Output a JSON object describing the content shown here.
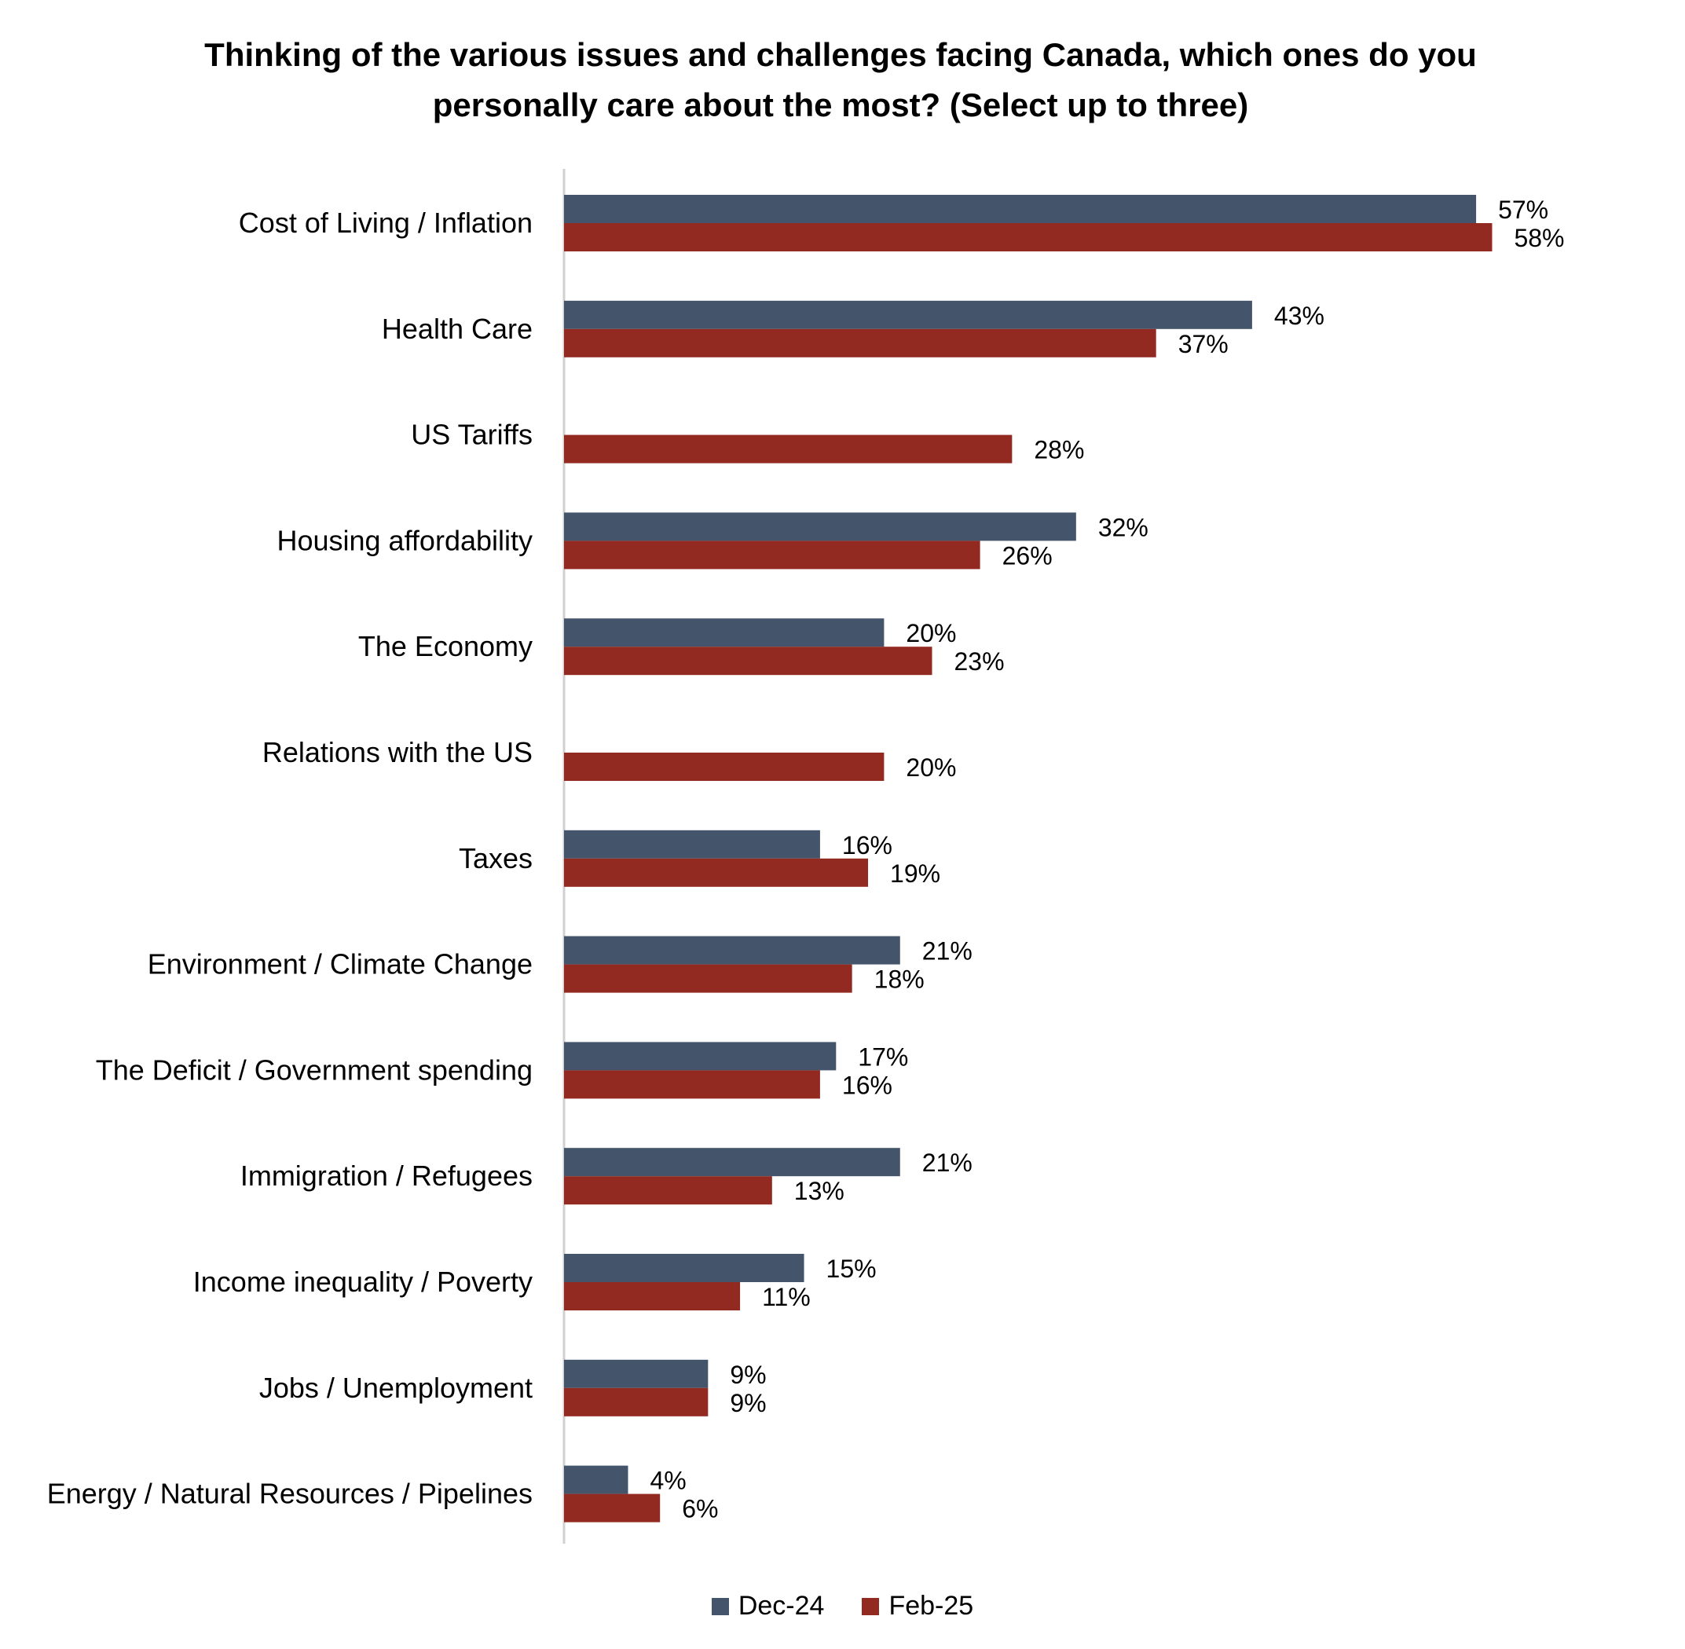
{
  "chart_data": {
    "type": "bar",
    "orientation": "horizontal",
    "title": "Thinking of the various issues and challenges facing Canada, which ones do you personally care about the most? (Select up to three)",
    "title_lines": [
      "Thinking of the various issues and challenges facing Canada, which ones do you",
      "personally care about the most? (Select up to three)"
    ],
    "categories": [
      "Cost of Living / Inflation",
      "Health Care",
      "US Tariffs",
      "Housing affordability",
      "The Economy",
      "Relations with the US",
      "Taxes",
      "Environment / Climate Change",
      "The Deficit / Government spending",
      "Immigration / Refugees",
      "Income inequality / Poverty",
      "Jobs / Unemployment",
      "Energy / Natural Resources / Pipelines"
    ],
    "series": [
      {
        "name": "Dec-24",
        "color": "#44546a",
        "values": [
          57,
          43,
          null,
          32,
          20,
          null,
          16,
          21,
          17,
          21,
          15,
          9,
          4
        ],
        "labels": [
          "57%",
          "43%",
          "",
          "32%",
          "20%",
          "",
          "16%",
          "21%",
          "17%",
          "21%",
          "15%",
          "9%",
          "4%"
        ]
      },
      {
        "name": "Feb-25",
        "color": "#922a21",
        "values": [
          58,
          37,
          28,
          26,
          23,
          20,
          19,
          18,
          16,
          13,
          11,
          9,
          6
        ],
        "labels": [
          "58%",
          "37%",
          "28%",
          "26%",
          "23%",
          "20%",
          "19%",
          "18%",
          "16%",
          "13%",
          "11%",
          "9%",
          "6%"
        ]
      }
    ],
    "xlim": [
      0,
      70
    ],
    "xlabel": "",
    "ylabel": "",
    "grid": false,
    "legend_position": "bottom"
  }
}
